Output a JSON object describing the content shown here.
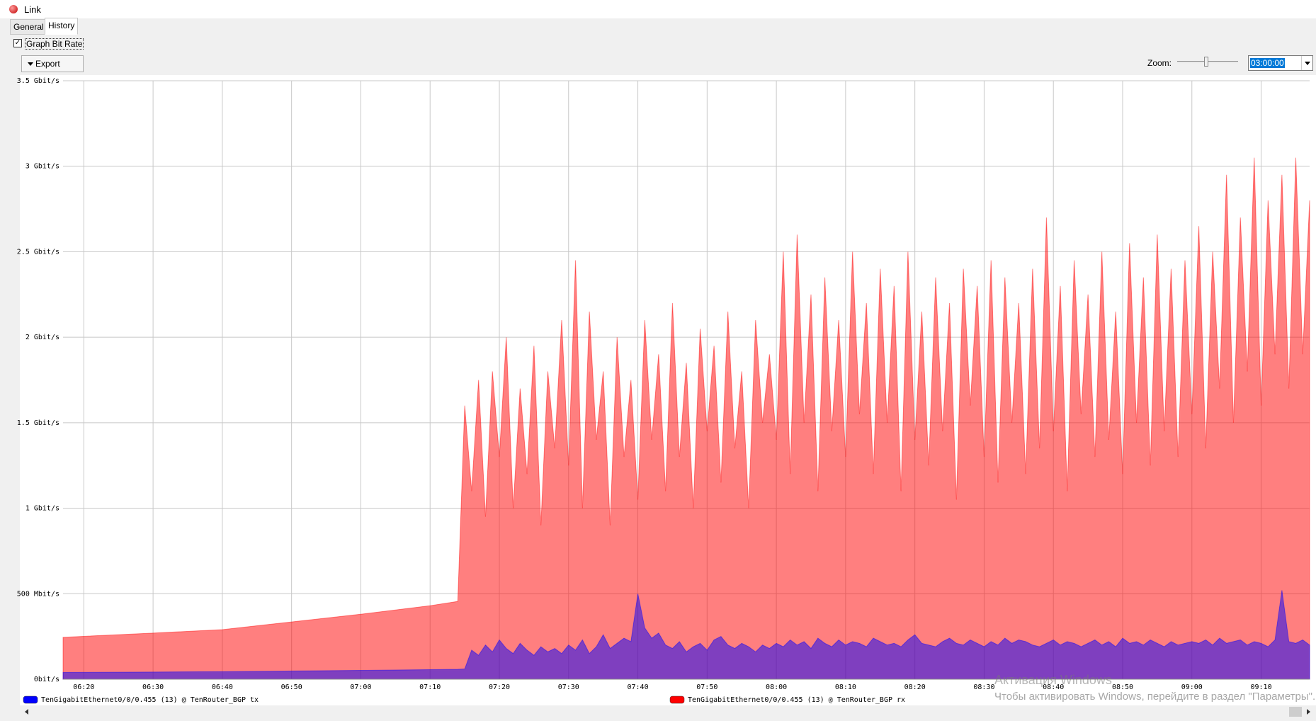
{
  "window": {
    "title": "Link",
    "tabs": [
      "General",
      "History"
    ],
    "checkbox": "Graph Bit Rate",
    "export": "Export",
    "zoom_label": "Zoom:",
    "zoom_value": "03:00:00"
  },
  "watermark": {
    "title": "Активация Windows",
    "text": "Чтобы активировать Windows, перейдите в раздел \"Параметры\"."
  },
  "chart_data": {
    "type": "area",
    "x": [
      "06:17",
      "06:30",
      "06:40",
      "06:50",
      "07:00",
      "07:10",
      "07:14",
      "07:15",
      "07:16",
      "07:17",
      "07:18",
      "07:19",
      "07:20",
      "07:21",
      "07:22",
      "07:23",
      "07:24",
      "07:25",
      "07:26",
      "07:27",
      "07:28",
      "07:29",
      "07:30",
      "07:31",
      "07:32",
      "07:33",
      "07:34",
      "07:35",
      "07:36",
      "07:37",
      "07:38",
      "07:39",
      "07:40",
      "07:41",
      "07:42",
      "07:43",
      "07:44",
      "07:45",
      "07:46",
      "07:47",
      "07:48",
      "07:49",
      "07:50",
      "07:51",
      "07:52",
      "07:53",
      "07:54",
      "07:55",
      "07:56",
      "07:57",
      "07:58",
      "07:59",
      "08:00",
      "08:01",
      "08:02",
      "08:03",
      "08:04",
      "08:05",
      "08:06",
      "08:07",
      "08:08",
      "08:09",
      "08:10",
      "08:11",
      "08:12",
      "08:13",
      "08:14",
      "08:15",
      "08:16",
      "08:17",
      "08:18",
      "08:19",
      "08:20",
      "08:21",
      "08:22",
      "08:23",
      "08:24",
      "08:25",
      "08:26",
      "08:27",
      "08:28",
      "08:29",
      "08:30",
      "08:31",
      "08:32",
      "08:33",
      "08:34",
      "08:35",
      "08:36",
      "08:37",
      "08:38",
      "08:39",
      "08:40",
      "08:41",
      "08:42",
      "08:43",
      "08:44",
      "08:45",
      "08:46",
      "08:47",
      "08:48",
      "08:49",
      "08:50",
      "08:51",
      "08:52",
      "08:53",
      "08:54",
      "08:55",
      "08:56",
      "08:57",
      "08:58",
      "08:59",
      "09:00",
      "09:01",
      "09:02",
      "09:03",
      "09:04",
      "09:05",
      "09:06",
      "09:07",
      "09:08",
      "09:09",
      "09:10",
      "09:11",
      "09:12",
      "09:13",
      "09:14",
      "09:15",
      "09:16",
      "09:17"
    ],
    "series": [
      {
        "name": "TenGigabitEthernet0/0/0.455 (13) @ TenRouter_BGP tx",
        "color": "#0000ff",
        "values": [
          40,
          42,
          44,
          48,
          52,
          56,
          58,
          60,
          170,
          140,
          200,
          160,
          230,
          180,
          150,
          210,
          170,
          140,
          190,
          160,
          180,
          150,
          200,
          170,
          230,
          150,
          190,
          260,
          180,
          210,
          240,
          220,
          500,
          300,
          240,
          270,
          200,
          180,
          220,
          160,
          190,
          210,
          170,
          230,
          250,
          200,
          180,
          210,
          190,
          160,
          200,
          180,
          210,
          190,
          230,
          200,
          220,
          180,
          240,
          210,
          190,
          230,
          200,
          220,
          210,
          190,
          240,
          220,
          200,
          210,
          190,
          230,
          260,
          210,
          200,
          190,
          220,
          240,
          210,
          200,
          230,
          210,
          190,
          220,
          200,
          240,
          210,
          230,
          220,
          200,
          190,
          210,
          230,
          200,
          220,
          210,
          190,
          210,
          230,
          200,
          220,
          190,
          240,
          210,
          220,
          200,
          230,
          210,
          190,
          220,
          200,
          210,
          220,
          210,
          230,
          200,
          240,
          210,
          220,
          230,
          200,
          220,
          210,
          190,
          230,
          520,
          220,
          210,
          230,
          200
        ]
      },
      {
        "name": "TenGigabitEthernet0/0/0.455 (13) @ TenRouter_BGP rx",
        "color": "#ff0000",
        "values": [
          245,
          270,
          290,
          335,
          380,
          430,
          455,
          1600,
          1100,
          1750,
          950,
          1800,
          1300,
          2000,
          1000,
          1700,
          1200,
          1950,
          900,
          1800,
          1350,
          2100,
          1250,
          2450,
          1000,
          2150,
          1400,
          1800,
          900,
          2000,
          1300,
          1750,
          1050,
          2100,
          1400,
          1900,
          1100,
          2200,
          1300,
          1850,
          1000,
          2050,
          1450,
          1950,
          1150,
          2150,
          1350,
          1800,
          1000,
          2100,
          1500,
          1900,
          1400,
          2500,
          1200,
          2600,
          1500,
          2250,
          1100,
          2350,
          1450,
          2100,
          1300,
          2500,
          1550,
          2200,
          1200,
          2400,
          1500,
          2300,
          1100,
          2500,
          1400,
          2150,
          1250,
          2350,
          1450,
          2200,
          1050,
          2400,
          1600,
          2300,
          1300,
          2450,
          1150,
          2350,
          1500,
          2200,
          1200,
          2400,
          1350,
          2700,
          1450,
          2300,
          1100,
          2450,
          1550,
          2250,
          1300,
          2500,
          1400,
          2150,
          1200,
          2550,
          1500,
          2350,
          1250,
          2600,
          1450,
          2400,
          1300,
          2450,
          1550,
          2650,
          1350,
          2500,
          1700,
          2950,
          1500,
          2700,
          1800,
          3050,
          1600,
          2800,
          1900,
          2950,
          1700,
          3050,
          1900,
          2800
        ]
      }
    ],
    "xlim": [
      "06:17",
      "09:17"
    ],
    "xticks": [
      "06:20",
      "06:30",
      "06:40",
      "06:50",
      "07:00",
      "07:10",
      "07:20",
      "07:30",
      "07:40",
      "07:50",
      "08:00",
      "08:10",
      "08:20",
      "08:30",
      "08:40",
      "08:50",
      "09:00",
      "09:10"
    ],
    "ylim": [
      0,
      3500
    ],
    "yticks": [
      {
        "value": 0,
        "label": "0bit/s"
      },
      {
        "value": 500,
        "label": "500 Mbit/s"
      },
      {
        "value": 1000,
        "label": "1 Gbit/s"
      },
      {
        "value": 1500,
        "label": "1.5 Gbit/s"
      },
      {
        "value": 2000,
        "label": "2 Gbit/s"
      },
      {
        "value": 2500,
        "label": "2.5 Gbit/s"
      },
      {
        "value": 3000,
        "label": "3 Gbit/s"
      },
      {
        "value": 3500,
        "label": "3.5 Gbit/s"
      }
    ],
    "grid": true
  }
}
